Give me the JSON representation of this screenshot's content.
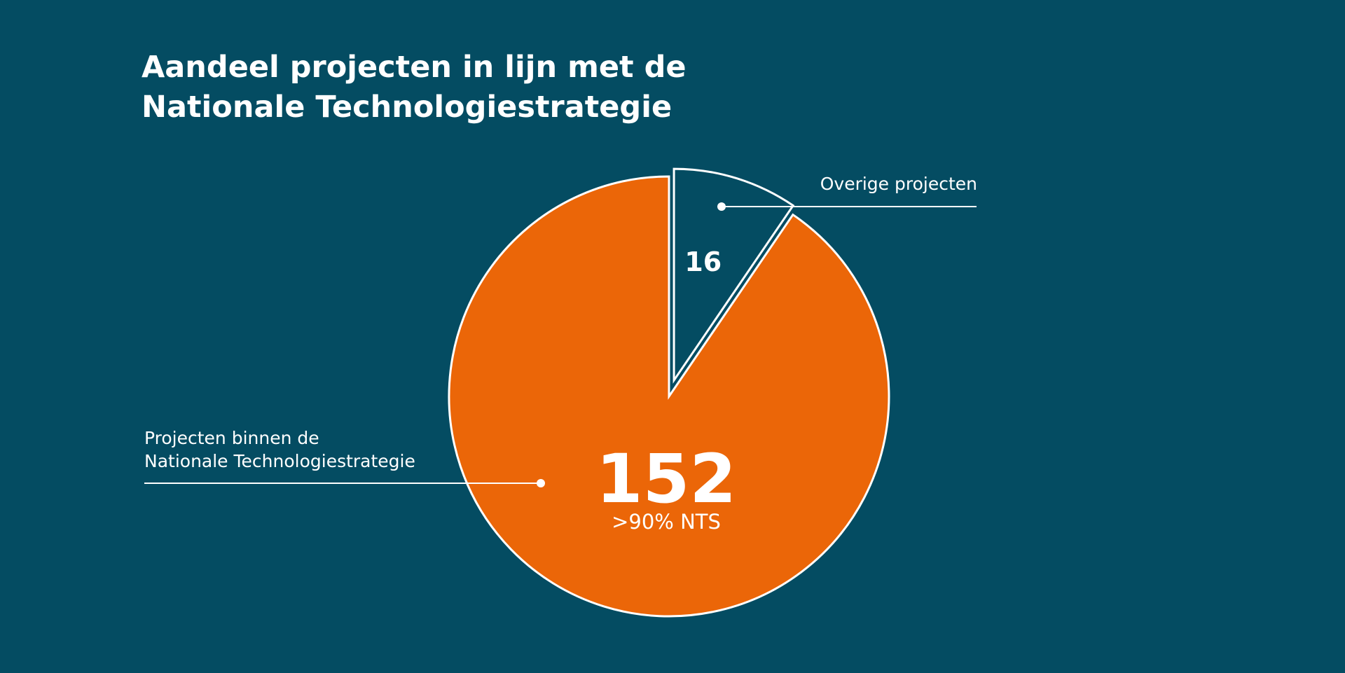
{
  "chart_data": {
    "type": "pie",
    "title_lines": [
      "Aandeel projecten in lijn met de",
      "Nationale Technologiestrategie"
    ],
    "slices": [
      {
        "name": "Projecten binnen de Nationale Technologiestrategie",
        "label_lines": [
          "Projecten binnen de",
          "Nationale Technologiestrategie"
        ],
        "value": 152,
        "value_label": "152",
        "sub_label": ">90% NTS",
        "color": "#eb6608",
        "exploded": false
      },
      {
        "name": "Overige projecten",
        "label_lines": [
          "Overige projecten"
        ],
        "value": 16,
        "value_label": "16",
        "color": "#044c62",
        "exploded": true
      }
    ],
    "start_angle_deg": 0,
    "direction": "clockwise"
  },
  "colors": {
    "background": "#044c62",
    "stroke": "#ffffff",
    "text": "#ffffff"
  }
}
